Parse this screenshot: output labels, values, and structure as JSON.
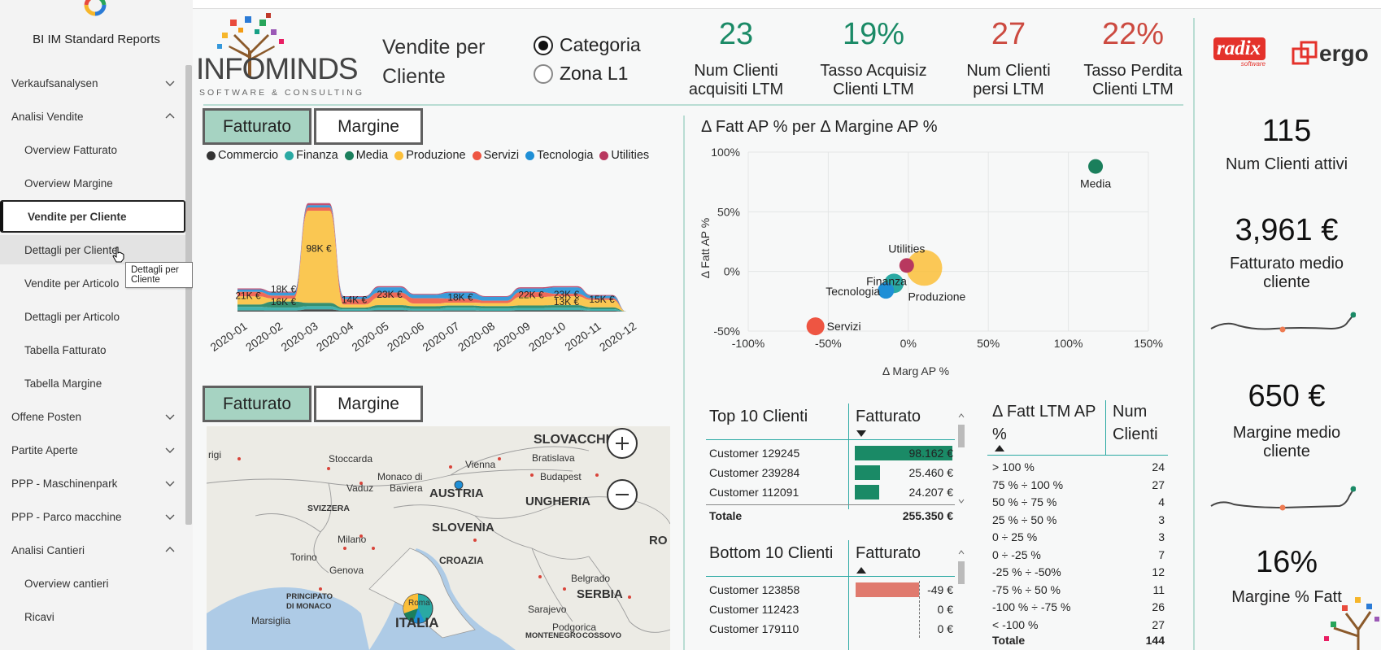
{
  "sidebar": {
    "app_title": "BI IM Standard Reports",
    "items": [
      {
        "label": "Verkaufsanalysen",
        "level": 1,
        "expanded": false
      },
      {
        "label": "Analisi Vendite",
        "level": 1,
        "expanded": true
      },
      {
        "label": "Overview Fatturato",
        "level": 2
      },
      {
        "label": "Overview Margine",
        "level": 2
      },
      {
        "label": "Vendite per Cliente",
        "level": 2,
        "active": true
      },
      {
        "label": "Dettagli per Cliente",
        "level": 2,
        "hover": true
      },
      {
        "label": "Vendite per Articolo",
        "level": 2
      },
      {
        "label": "Dettagli per Articolo",
        "level": 2
      },
      {
        "label": "Tabella Fatturato",
        "level": 2
      },
      {
        "label": "Tabella Margine",
        "level": 2
      },
      {
        "label": "Offene Posten",
        "level": 1,
        "expanded": false
      },
      {
        "label": "Partite Aperte",
        "level": 1,
        "expanded": false
      },
      {
        "label": "PPP - Maschinenpark",
        "level": 1,
        "expanded": false
      },
      {
        "label": "PPP - Parco macchine",
        "level": 1,
        "expanded": false
      },
      {
        "label": "Analisi Cantieri",
        "level": 1,
        "expanded": true
      },
      {
        "label": "Overview cantieri",
        "level": 2
      },
      {
        "label": "Ricavi",
        "level": 2
      }
    ],
    "tooltip": "Dettagli per Cliente"
  },
  "brand": {
    "name": "INFOMINDS",
    "tagline": "SOFTWARE & CONSULTING",
    "partner1": "radix",
    "partner1_sub": "software",
    "partner2": "ergo"
  },
  "header": {
    "title_line1": "Vendite per",
    "title_line2": "Cliente",
    "radio_options": [
      {
        "label": "Categoria",
        "selected": true
      },
      {
        "label": "Zona L1",
        "selected": false
      }
    ],
    "kpis": [
      {
        "value": "23",
        "label1": "Num Clienti",
        "label2": "acquisiti LTM",
        "tone": "green"
      },
      {
        "value": "19%",
        "label1": "Tasso Acquisiz",
        "label2": "Clienti LTM",
        "tone": "green"
      },
      {
        "value": "27",
        "label1": "Num Clienti",
        "label2": "persi LTM",
        "tone": "red"
      },
      {
        "value": "22%",
        "label1": "Tasso Perdita",
        "label2": "Clienti LTM",
        "tone": "red"
      }
    ]
  },
  "toggles": {
    "fatturato": "Fatturato",
    "margine": "Margine"
  },
  "colors": {
    "Commercio": "#333333",
    "Finanza": "#2aa9a3",
    "Media": "#1b7f5c",
    "Produzione": "#fbbf3a",
    "Servizi": "#ee5542",
    "Tecnologia": "#1f8fd6",
    "Utilities": "#b8385f",
    "accent": "#a6d3c2",
    "neg_bar": "#e07a6e",
    "pos_bar": "#1a8a66"
  },
  "chart_data": [
    {
      "type": "area",
      "subtype": "ribbon",
      "series_names": [
        "Commercio",
        "Finanza",
        "Media",
        "Produzione",
        "Servizi",
        "Tecnologia",
        "Utilities"
      ],
      "categories": [
        "2020-01",
        "2020-02",
        "2020-03",
        "2020-04",
        "2020-05",
        "2020-06",
        "2020-07",
        "2020-08",
        "2020-09",
        "2020-10",
        "2020-11",
        "2020-12"
      ],
      "totals": [
        21,
        18,
        98,
        14,
        23,
        16,
        18,
        14,
        22,
        23,
        15,
        null
      ],
      "data_labels": [
        {
          "cat": "2020-01",
          "text": "21K €"
        },
        {
          "cat": "2020-02",
          "text": "18K €"
        },
        {
          "cat": "2020-02",
          "text": "16K €"
        },
        {
          "cat": "2020-03",
          "text": "98K €"
        },
        {
          "cat": "2020-04",
          "text": "14K €"
        },
        {
          "cat": "2020-05",
          "text": "23K €"
        },
        {
          "cat": "2020-07",
          "text": "18K €"
        },
        {
          "cat": "2020-09",
          "text": "22K €"
        },
        {
          "cat": "2020-10",
          "text": "23K €"
        },
        {
          "cat": "2020-10",
          "text": "13K €"
        },
        {
          "cat": "2020-11",
          "text": "15K €"
        }
      ]
    },
    {
      "type": "scatter",
      "title": "Δ Fatt AP % per Δ Margine AP %",
      "xlabel": "Δ Marg AP %",
      "ylabel": "Δ Fatt AP %",
      "xlim": [
        -100,
        150
      ],
      "ylim": [
        -50,
        100
      ],
      "x_ticks": [
        "-100%",
        "-50%",
        "0%",
        "50%",
        "100%",
        "150%"
      ],
      "y_ticks": [
        "100%",
        "50%",
        "0%",
        "-50%"
      ],
      "points": [
        {
          "label": "Media",
          "x": 117,
          "y": 88,
          "size": 9,
          "color": "#1b7f5c"
        },
        {
          "label": "Produzione",
          "x": 10,
          "y": 3,
          "size": 22,
          "color": "#fbbf3a"
        },
        {
          "label": "Utilities",
          "x": -1,
          "y": 5,
          "size": 9,
          "color": "#b8385f"
        },
        {
          "label": "Finanza",
          "x": -9,
          "y": -10,
          "size": 12,
          "color": "#2aa9a3"
        },
        {
          "label": "Tecnologia",
          "x": -14,
          "y": -16,
          "size": 10,
          "color": "#1f8fd6"
        },
        {
          "label": "Servizi",
          "x": -58,
          "y": -46,
          "size": 11,
          "color": "#ee5542"
        }
      ]
    }
  ],
  "top10": {
    "title": "Top 10 Clienti",
    "col": "Fatturato",
    "rows": [
      {
        "name": "Customer 129245",
        "value": "98.162 €",
        "amount": 98162
      },
      {
        "name": "Customer 239284",
        "value": "25.460 €",
        "amount": 25460
      },
      {
        "name": "Customer 112091",
        "value": "24.207 €",
        "amount": 24207
      }
    ],
    "total_label": "Totale",
    "total_value": "255.350 €"
  },
  "bottom10": {
    "title": "Bottom 10 Clienti",
    "col": "Fatturato",
    "rows": [
      {
        "name": "Customer 123858",
        "value": "-49 €",
        "amount": -49
      },
      {
        "name": "Customer 112423",
        "value": "0 €",
        "amount": 0
      },
      {
        "name": "Customer 179110",
        "value": "0 €",
        "amount": 0
      }
    ]
  },
  "bands": {
    "col1": "Δ Fatt LTM AP %",
    "col2_line1": "Num",
    "col2_line2": "Clienti",
    "rows": [
      {
        "band": "> 100 %",
        "count": "24"
      },
      {
        "band": "75 % ÷ 100 %",
        "count": "27"
      },
      {
        "band": "50 % ÷ 75 %",
        "count": "4"
      },
      {
        "band": "25 % ÷ 50 %",
        "count": "3"
      },
      {
        "band": "0 ÷ 25 %",
        "count": "3"
      },
      {
        "band": "0 ÷ -25 %",
        "count": "7"
      },
      {
        "band": "-25 % ÷ -50%",
        "count": "12"
      },
      {
        "band": "-75 % ÷ 50 %",
        "count": "11"
      },
      {
        "band": "-100 % ÷ -75 %",
        "count": "26"
      },
      {
        "band": "< -100 %",
        "count": "27"
      }
    ],
    "total_label": "Totale",
    "total_value": "144"
  },
  "map": {
    "labels": [
      {
        "t": "SLOVACCHI",
        "s": "b"
      },
      {
        "t": "Bratislava",
        "s": "s"
      },
      {
        "t": "Vienna",
        "s": "s"
      },
      {
        "t": "Stoccarda",
        "s": "s"
      },
      {
        "t": "Monaco di",
        "s": "s"
      },
      {
        "t": "Baviera",
        "s": "s"
      },
      {
        "t": "Vaduz",
        "s": "s"
      },
      {
        "t": "AUSTRIA",
        "s": "b"
      },
      {
        "t": "Budapest",
        "s": "s"
      },
      {
        "t": "UNGHERIA",
        "s": "b"
      },
      {
        "t": "SVIZZERA",
        "s": "m"
      },
      {
        "t": "SLOVENIA",
        "s": "b"
      },
      {
        "t": "Milano",
        "s": "s"
      },
      {
        "t": "Torino",
        "s": "s"
      },
      {
        "t": "CROAZIA",
        "s": "m"
      },
      {
        "t": "Genova",
        "s": "s"
      },
      {
        "t": "Belgrado",
        "s": "s"
      },
      {
        "t": "SERBIA",
        "s": "b"
      },
      {
        "t": "PRINCIPATO",
        "s": "xs"
      },
      {
        "t": "DI MONACO",
        "s": "xs"
      },
      {
        "t": "Marsiglia",
        "s": "s"
      },
      {
        "t": "Sarajevo",
        "s": "s"
      },
      {
        "t": "ITALIA",
        "s": "b"
      },
      {
        "t": "MONTENEGRO",
        "s": "xs"
      },
      {
        "t": "Podgorica",
        "s": "s"
      },
      {
        "t": "COSSOVO",
        "s": "xs"
      },
      {
        "t": "RO",
        "s": "b"
      },
      {
        "t": "rigi",
        "s": "s"
      },
      {
        "t": "Roma",
        "s": "s"
      }
    ]
  },
  "right_kpis": [
    {
      "value": "115",
      "label1": "Num Clienti attivi",
      "label2": ""
    },
    {
      "value": "3,961 €",
      "label1": "Fatturato medio",
      "label2": "cliente"
    },
    {
      "value": "650 €",
      "label1": "Margine medio",
      "label2": "cliente"
    },
    {
      "value": "16%",
      "label1": "Margine % Fatt",
      "label2": ""
    }
  ]
}
